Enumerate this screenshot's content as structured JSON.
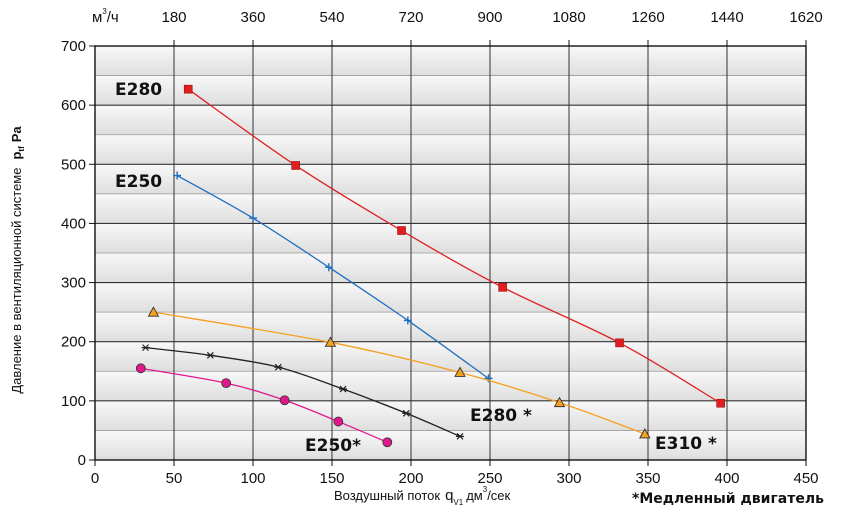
{
  "chart_data": {
    "type": "line",
    "xlabel": "Воздушный поток",
    "xlabel_symbol": "q",
    "xlabel_sub": "V1",
    "xlabel_unit": "дм",
    "xlabel_unit_exp": "3",
    "xlabel_unit_tail": "/сек",
    "ylabel": "Давление  в вентиляционной системе",
    "ylabel_symbol": "p",
    "ylabel_sub": "tf",
    "ylabel_unit": "Pa",
    "top_axis_unit": "м",
    "top_axis_unit_exp": "3",
    "top_axis_unit_tail": "/ч",
    "xlim": [
      0,
      450
    ],
    "ylim": [
      0,
      700
    ],
    "x_ticks": [
      0,
      50,
      100,
      150,
      200,
      250,
      300,
      350,
      400,
      450
    ],
    "y_ticks": [
      0,
      100,
      200,
      300,
      400,
      500,
      600,
      700
    ],
    "top_ticks": [
      180,
      360,
      540,
      720,
      900,
      1080,
      1260,
      1440,
      1620
    ],
    "grid": true,
    "note": "*Медленный двигатель",
    "series": [
      {
        "name": "E280",
        "color": "#e02020",
        "marker": "square",
        "x": [
          59,
          127,
          194,
          258,
          332,
          396
        ],
        "y": [
          627,
          498,
          388,
          292,
          198,
          96
        ]
      },
      {
        "name": "E250",
        "color": "#1e6fc0",
        "marker": "plus",
        "x": [
          52,
          100,
          148,
          198,
          249
        ],
        "y": [
          481,
          409,
          326,
          236,
          138
        ]
      },
      {
        "name": "E310 *",
        "color": "#f5a020",
        "marker": "triangle",
        "x": [
          37,
          149,
          231,
          294,
          348
        ],
        "y": [
          250,
          199,
          148,
          97,
          44
        ]
      },
      {
        "name": "E280 *",
        "color": "#222222",
        "marker": "star",
        "x": [
          32,
          73,
          116,
          157,
          197,
          231
        ],
        "y": [
          190,
          177,
          157,
          120,
          79,
          40
        ]
      },
      {
        "name": "E250*",
        "color": "#e0188c",
        "marker": "circle",
        "x": [
          29,
          83,
          120,
          154,
          185
        ],
        "y": [
          155,
          130,
          101,
          65,
          30
        ]
      }
    ]
  }
}
